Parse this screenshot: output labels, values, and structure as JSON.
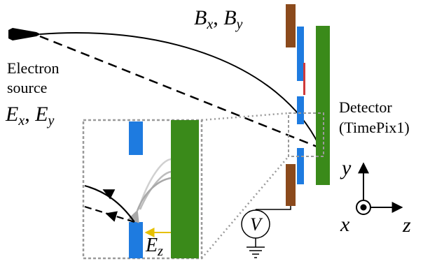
{
  "labels": {
    "electron_source_line1": "Electron",
    "electron_source_line2": "source",
    "e_field_xy": "E",
    "e_sub_x": "x",
    "e_sep": ", ",
    "e_sub_y": "y",
    "b_field_xy": "B",
    "b_sub_x": "x",
    "b_sep": ", ",
    "b_sub_y": "y",
    "detector_line1": "Detector",
    "detector_line2": "(TimePix1)",
    "voltmeter": "V",
    "ez": "E",
    "ez_sub": "z",
    "axis_y": "y",
    "axis_x": "x",
    "axis_z": "z"
  },
  "colors": {
    "brown": "#8b4a1c",
    "blue": "#1e7be0",
    "green": "#3a8a1a",
    "red": "#d03a3a",
    "yellow": "#e6c000",
    "gray_dotted": "#9a9a9a",
    "light_gray_traj": "#c8c8c8",
    "mid_gray_traj": "#a8a8a8"
  },
  "icons": {
    "source": "electron-gun-icon",
    "ground": "ground-icon",
    "axis_out_of_page": "dot-in-circle-icon"
  }
}
